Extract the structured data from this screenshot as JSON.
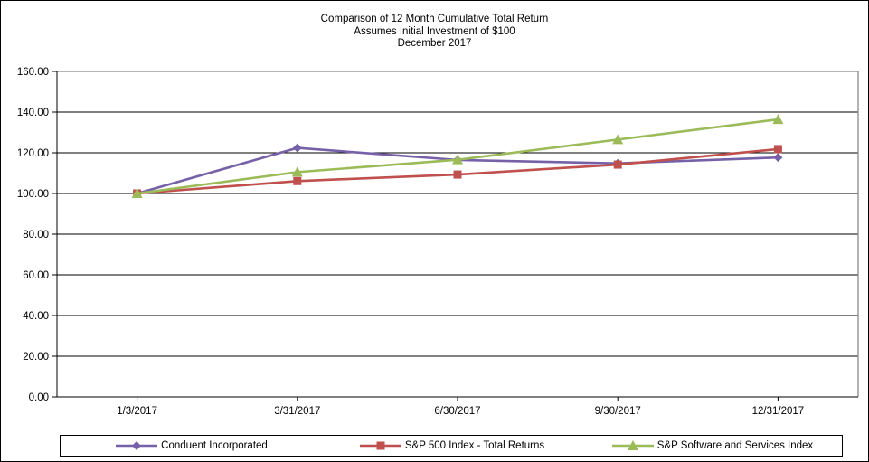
{
  "title": {
    "line1": "Comparison of 12 Month Cumulative Total Return",
    "line2": "Assumes Initial Investment of $100",
    "line3": "December 2017"
  },
  "chart_data": {
    "type": "line",
    "categories": [
      "1/3/2017",
      "3/31/2017",
      "6/30/2017",
      "9/30/2017",
      "12/31/2017"
    ],
    "series": [
      {
        "name": "Conduent Incorporated",
        "color": "#7661A8",
        "marker": "diamond",
        "values": [
          100.0,
          122.4,
          116.5,
          114.8,
          117.7
        ]
      },
      {
        "name": "S&P 500 Index - Total Returns",
        "color": "#C0504D",
        "marker": "square",
        "values": [
          100.0,
          106.1,
          109.3,
          114.2,
          121.8
        ]
      },
      {
        "name": "S&P Software and Services Index",
        "color": "#9BBB59",
        "marker": "triangle",
        "values": [
          100.0,
          110.5,
          116.6,
          126.5,
          136.4
        ]
      }
    ],
    "ylim": [
      0,
      160
    ],
    "ytick_step": 20,
    "ytick_labels": [
      "0.00",
      "20.00",
      "40.00",
      "60.00",
      "80.00",
      "100.00",
      "120.00",
      "140.00",
      "160.00"
    ],
    "grid": true,
    "legend_position": "bottom",
    "colors": {
      "axis": "#000000",
      "gridline": "#000000",
      "plot_border": "#898989",
      "text": "#000000"
    }
  }
}
